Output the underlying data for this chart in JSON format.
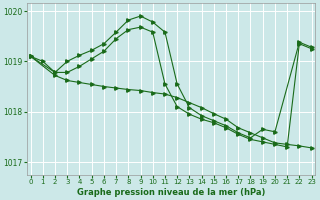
{
  "xlabel": "Graphe pression niveau de la mer (hPa)",
  "ylim": [
    1016.75,
    1020.15
  ],
  "xlim": [
    -0.3,
    23.3
  ],
  "yticks": [
    1017,
    1018,
    1019,
    1020
  ],
  "xticks": [
    0,
    1,
    2,
    3,
    4,
    5,
    6,
    7,
    8,
    9,
    10,
    11,
    12,
    13,
    14,
    15,
    16,
    17,
    18,
    19,
    20,
    21,
    22,
    23
  ],
  "bg_color": "#cce8e8",
  "line_color": "#1a6b1a",
  "grid_color": "#ffffff",
  "line1_x": [
    0,
    1,
    2,
    3,
    4,
    5,
    6,
    7,
    8,
    9,
    10,
    11,
    12,
    13,
    14,
    15,
    16,
    17,
    18,
    19,
    20,
    21,
    22,
    23
  ],
  "line1_y": [
    1019.1,
    1019.0,
    1018.78,
    1018.78,
    1018.9,
    1019.05,
    1019.2,
    1019.45,
    1019.63,
    1019.68,
    1019.58,
    1018.55,
    1018.1,
    1017.95,
    1017.85,
    1017.78,
    1017.68,
    1017.55,
    1017.45,
    1017.4,
    1017.35,
    1017.3,
    1019.35,
    1019.25
  ],
  "line2_x": [
    0,
    2,
    3,
    4,
    5,
    6,
    7,
    8,
    9,
    10,
    11,
    12,
    13,
    14,
    15,
    16,
    17,
    18,
    19,
    20,
    22,
    23
  ],
  "line2_y": [
    1019.1,
    1018.78,
    1019.0,
    1019.12,
    1019.22,
    1019.35,
    1019.58,
    1019.82,
    1019.9,
    1019.78,
    1019.58,
    1018.55,
    1018.08,
    1017.92,
    1017.82,
    1017.72,
    1017.58,
    1017.48,
    1017.65,
    1017.6,
    1019.38,
    1019.28
  ],
  "line3_x": [
    0,
    2,
    3,
    4,
    5,
    6,
    7,
    8,
    9,
    10,
    11,
    12,
    13,
    14,
    15,
    16,
    17,
    18,
    19,
    20,
    21,
    22,
    23
  ],
  "line3_y": [
    1019.1,
    1018.72,
    1018.62,
    1018.58,
    1018.54,
    1018.5,
    1018.47,
    1018.44,
    1018.42,
    1018.38,
    1018.35,
    1018.28,
    1018.18,
    1018.08,
    1017.96,
    1017.85,
    1017.68,
    1017.58,
    1017.48,
    1017.38,
    1017.35,
    1017.32,
    1017.28
  ]
}
